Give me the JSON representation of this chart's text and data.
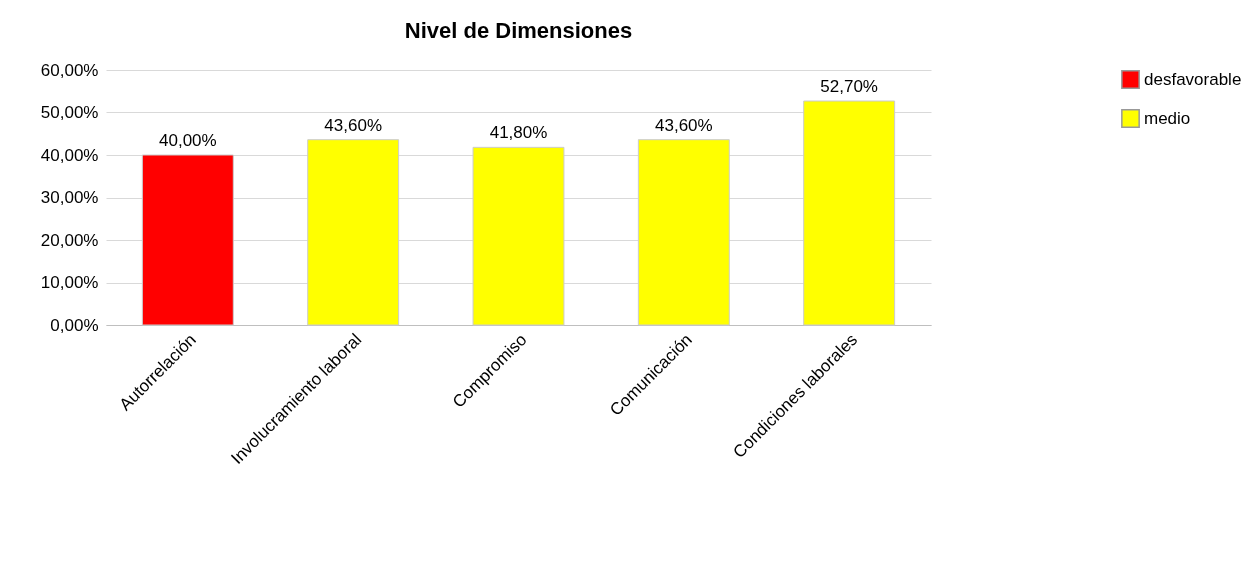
{
  "chart_data": {
    "type": "bar",
    "title": "Nivel de Dimensiones",
    "categories": [
      "Autorrelación",
      "Involucramiento laboral",
      "Compromiso",
      "Comunicación",
      "Condiciones laborales"
    ],
    "series": [
      {
        "name": "desfavorable",
        "color": "#ff0000",
        "values": [
          40,
          null,
          null,
          null,
          null
        ],
        "value_labels": [
          "40,00%",
          null,
          null,
          null,
          null
        ]
      },
      {
        "name": "medio",
        "color": "#ffff00",
        "values": [
          null,
          43.6,
          41.8,
          43.6,
          52.7
        ],
        "value_labels": [
          null,
          "43,60%",
          "41,80%",
          "43,60%",
          "52,70%"
        ]
      }
    ],
    "ylim": [
      0,
      60
    ],
    "yticks": [
      {
        "value": 0,
        "label": "0,00%"
      },
      {
        "value": 10,
        "label": "10,00%"
      },
      {
        "value": 20,
        "label": "20,00%"
      },
      {
        "value": 30,
        "label": "30,00%"
      },
      {
        "value": 40,
        "label": "40,00%"
      },
      {
        "value": 50,
        "label": "50,00%"
      },
      {
        "value": 60,
        "label": "60,00%"
      }
    ],
    "grid": "y",
    "legend": "top right"
  }
}
